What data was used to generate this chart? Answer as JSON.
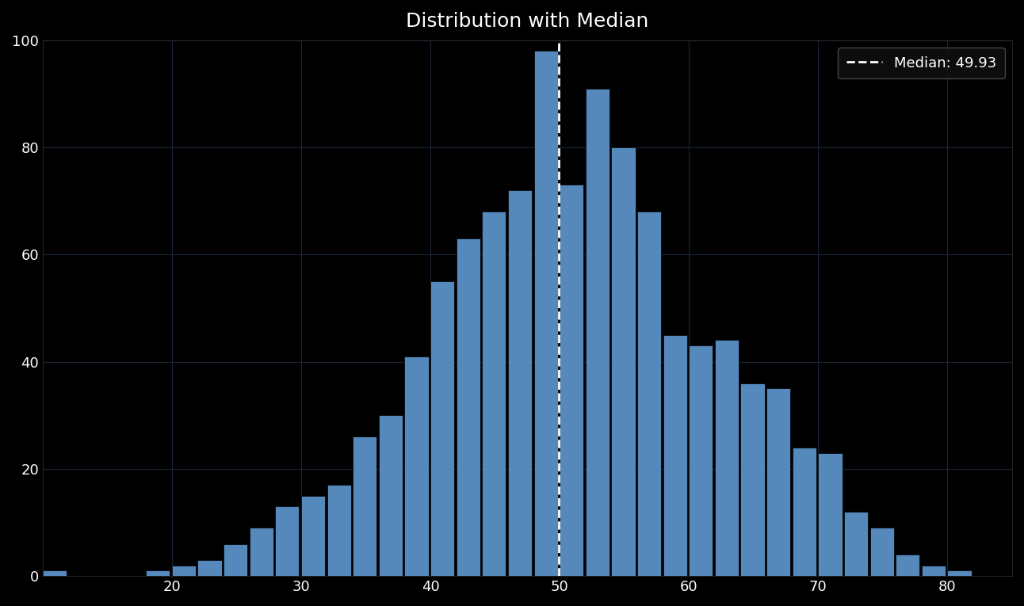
{
  "title": "Distribution with Median",
  "median": 49.93,
  "median_label": "Median: 49.93",
  "bar_color": "#5588bb",
  "background_color": "#000000",
  "text_color": "#ffffff",
  "xlim": [
    10,
    85
  ],
  "ylim": [
    0,
    100
  ],
  "xticks": [
    20,
    30,
    40,
    50,
    60,
    70,
    80
  ],
  "yticks": [
    0,
    20,
    40,
    60,
    80,
    100
  ],
  "bin_edges": [
    10,
    12,
    14,
    16,
    18,
    20,
    22,
    24,
    26,
    28,
    30,
    32,
    34,
    36,
    38,
    40,
    42,
    44,
    46,
    48,
    50,
    52,
    54,
    56,
    58,
    60,
    62,
    64,
    66,
    68,
    70,
    72,
    74,
    76,
    78,
    80,
    82
  ],
  "bar_heights": [
    1,
    0,
    0,
    0,
    1,
    2,
    3,
    6,
    9,
    13,
    15,
    17,
    26,
    30,
    41,
    55,
    63,
    68,
    72,
    98,
    73,
    91,
    80,
    68,
    45,
    43,
    44,
    36,
    35,
    24,
    23,
    12,
    9,
    4,
    2,
    1,
    0
  ]
}
